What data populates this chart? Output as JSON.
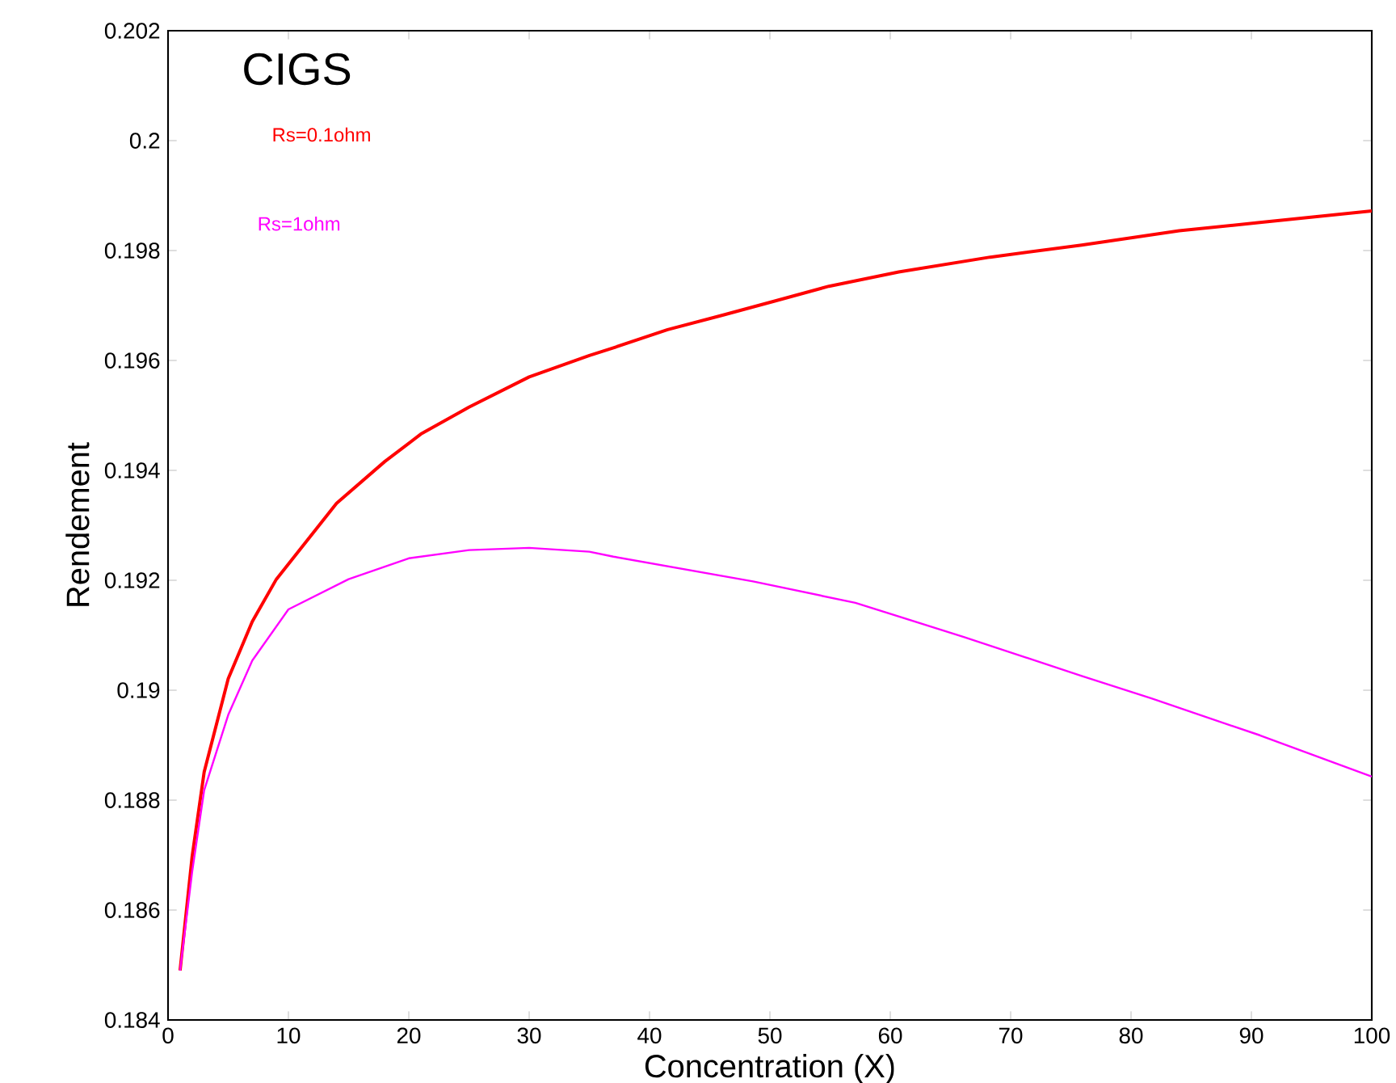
{
  "chart_data": {
    "type": "line",
    "title": "CIGS",
    "xlabel": "Concentration (X)",
    "ylabel": "Rendement",
    "xlim": [
      0,
      100
    ],
    "ylim": [
      0.184,
      0.202
    ],
    "xticks": [
      0,
      10,
      20,
      30,
      40,
      50,
      60,
      70,
      80,
      90,
      100
    ],
    "yticks": [
      0.184,
      0.186,
      0.188,
      0.19,
      0.192,
      0.194,
      0.196,
      0.198,
      0.2,
      0.202
    ],
    "grid": false,
    "legend": false,
    "marker": "none",
    "line_style": "solid",
    "series": [
      {
        "name": "Rs=0.1ohm",
        "color": "#ff0000",
        "x": [
          1,
          2,
          3,
          5,
          7,
          9,
          14,
          18,
          21,
          25,
          30,
          35,
          37,
          41.5,
          46,
          50.4,
          54.9,
          60.7,
          68.3,
          75.9,
          84,
          90.7,
          100
        ],
        "values": [
          0.1849,
          0.18697,
          0.18851,
          0.19021,
          0.19125,
          0.19202,
          0.1934,
          0.19416,
          0.19466,
          0.19515,
          0.1957,
          0.19609,
          0.19623,
          0.19656,
          0.19682,
          0.19708,
          0.19735,
          0.19761,
          0.19788,
          0.1981,
          0.19836,
          0.19851,
          0.19872
        ]
      },
      {
        "name": "Rs=1ohm",
        "color": "#ff00ff",
        "x": [
          1,
          2,
          3,
          5,
          7,
          10,
          15,
          20,
          25,
          30,
          35,
          37,
          48.6,
          57.1,
          66.1,
          75.9,
          81.7,
          90.7,
          100
        ],
        "values": [
          0.1849,
          0.18669,
          0.18818,
          0.18955,
          0.19054,
          0.19147,
          0.19202,
          0.1924,
          0.19255,
          0.19259,
          0.19252,
          0.19243,
          0.19198,
          0.19159,
          0.19097,
          0.19026,
          0.18985,
          0.18918,
          0.18843
        ]
      }
    ]
  }
}
